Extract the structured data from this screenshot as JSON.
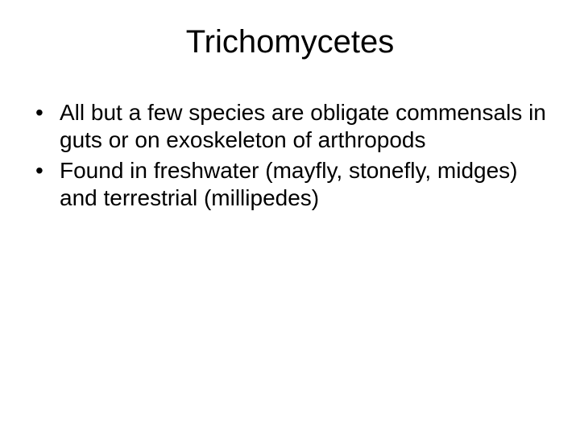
{
  "slide": {
    "title": "Trichomycetes",
    "bullets": [
      "All but a few species are obligate commensals in guts or on exoskeleton of arthropods",
      "Found in freshwater (mayfly, stonefly, midges) and terrestrial (millipedes)"
    ],
    "colors": {
      "background": "#ffffff",
      "text": "#000000"
    },
    "typography": {
      "title_fontsize": 40,
      "body_fontsize": 28,
      "font_family": "Arial"
    }
  }
}
